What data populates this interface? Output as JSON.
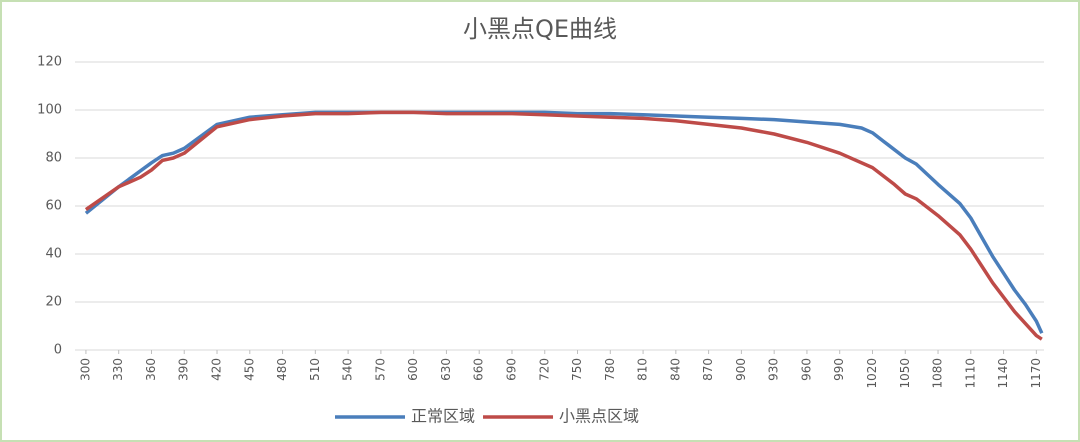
{
  "chart_data": {
    "type": "line",
    "title": "小黑点QE曲线",
    "xlim": [
      290,
      1177
    ],
    "ylim": [
      0,
      120
    ],
    "yticks": [
      0,
      20,
      40,
      60,
      80,
      100,
      120
    ],
    "xticks": [
      300,
      330,
      360,
      390,
      420,
      450,
      480,
      510,
      540,
      570,
      600,
      630,
      660,
      690,
      720,
      750,
      780,
      810,
      840,
      870,
      900,
      930,
      960,
      990,
      1020,
      1050,
      1080,
      1110,
      1140,
      1170
    ],
    "grid": true,
    "legend": "bottom",
    "series": [
      {
        "name": "正常区域",
        "color": "#4a7ebb",
        "x": [
          300,
          330,
          360,
          370,
          380,
          390,
          420,
          450,
          480,
          510,
          540,
          570,
          600,
          630,
          660,
          690,
          720,
          750,
          780,
          810,
          840,
          870,
          900,
          930,
          960,
          990,
          1010,
          1020,
          1030,
          1050,
          1060,
          1080,
          1100,
          1110,
          1120,
          1130,
          1140,
          1150,
          1160,
          1170,
          1175
        ],
        "values": [
          57,
          68,
          78,
          81,
          82,
          84,
          94,
          97,
          98,
          99,
          99,
          99,
          99,
          99,
          99,
          99,
          99,
          98.5,
          98.5,
          98,
          97.5,
          97,
          96.5,
          96,
          95,
          94,
          92.5,
          90.5,
          87,
          80,
          77.5,
          69,
          61,
          55,
          47,
          39,
          32,
          25,
          19,
          12,
          7
        ]
      },
      {
        "name": "小黑点区域",
        "color": "#be4b48",
        "x": [
          300,
          330,
          350,
          360,
          370,
          380,
          390,
          420,
          450,
          480,
          510,
          540,
          570,
          600,
          630,
          660,
          690,
          720,
          750,
          780,
          810,
          840,
          870,
          900,
          930,
          960,
          990,
          1020,
          1040,
          1050,
          1060,
          1080,
          1100,
          1110,
          1120,
          1130,
          1140,
          1150,
          1160,
          1170,
          1175
        ],
        "values": [
          58.5,
          68,
          72,
          75,
          79,
          80,
          82,
          93,
          96,
          97.5,
          98.5,
          98.5,
          99,
          99,
          98.5,
          98.5,
          98.5,
          98,
          97.5,
          97,
          96.5,
          95.5,
          94,
          92.5,
          90,
          86.5,
          82,
          76,
          69,
          65,
          63,
          56,
          48,
          42,
          35,
          28,
          22,
          16,
          11,
          6,
          4.5
        ]
      }
    ]
  }
}
